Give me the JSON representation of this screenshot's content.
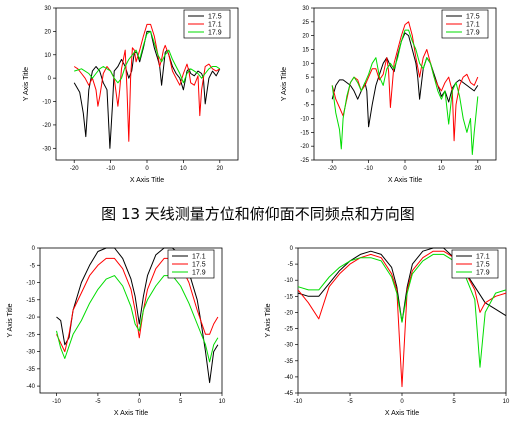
{
  "caption": "图 13 天线测量方位和俯仰面不同频点和方向图",
  "chart_data": [
    {
      "type": "line",
      "xlabel": "X Axis Title",
      "ylabel": "Y Axis Title",
      "xlim": [
        -25,
        25
      ],
      "ylim": [
        -35,
        30
      ],
      "xticks": [
        -20,
        -10,
        0,
        10,
        20
      ],
      "yticks": [
        -30,
        -20,
        -10,
        0,
        10,
        20,
        30
      ],
      "legend": "top-right",
      "series": [
        {
          "name": "17.5",
          "color": "#000000",
          "x": [
            -20,
            -18.5,
            -17.5,
            -16.8,
            -16,
            -15,
            -14,
            -13,
            -12,
            -11,
            -10.2,
            -9.5,
            -9,
            -8,
            -7,
            -6,
            -5,
            -4.2,
            -3.5,
            -2.8,
            -2,
            -1,
            0,
            1,
            2,
            3,
            3.5,
            4,
            5,
            5.5,
            6,
            7,
            8,
            9,
            10,
            11,
            11.5,
            12,
            13,
            14,
            15,
            15.5,
            16,
            17,
            18,
            19,
            20
          ],
          "y": [
            -2,
            -6,
            -15,
            -25,
            -5,
            3,
            5,
            3,
            -2,
            -5,
            -30,
            -12,
            3,
            5,
            8,
            5,
            0,
            3,
            11,
            11,
            7,
            13,
            20,
            20,
            13,
            8,
            5,
            -3,
            11,
            12,
            10,
            5,
            2,
            0,
            -5,
            3,
            4,
            2,
            1,
            3,
            2,
            0,
            -11,
            0,
            3,
            1,
            4
          ]
        },
        {
          "name": "17.1",
          "color": "#ff0000",
          "x": [
            -20,
            -19,
            -18,
            -17,
            -16,
            -15,
            -14,
            -13.5,
            -13,
            -12,
            -11,
            -10,
            -9,
            -8,
            -7.5,
            -7,
            -6,
            -5.5,
            -5,
            -4.5,
            -4,
            -3.5,
            -3,
            -2,
            -1,
            0,
            1,
            2,
            3,
            3.5,
            4,
            4.5,
            5,
            6,
            7,
            8,
            9,
            10,
            11,
            11.5,
            12,
            13,
            14,
            14.5,
            15,
            16,
            17,
            18,
            19,
            20
          ],
          "y": [
            5,
            4,
            2,
            0,
            -3,
            0,
            -5,
            -12,
            -8,
            2,
            5,
            3,
            0,
            -12,
            -5,
            4,
            12,
            -5,
            -27,
            0,
            13,
            12,
            7,
            12,
            18,
            23,
            23,
            18,
            10,
            5,
            8,
            12,
            14,
            10,
            3,
            0,
            -3,
            2,
            6,
            3,
            -2,
            -3,
            1,
            -16,
            -5,
            5,
            6,
            4,
            3,
            4
          ]
        },
        {
          "name": "17.9",
          "color": "#00dd00",
          "x": [
            -20,
            -18,
            -16,
            -15,
            -14,
            -13,
            -12,
            -11,
            -10,
            -9,
            -8,
            -7,
            -6,
            -5,
            -4,
            -3,
            -2,
            -1,
            0,
            1,
            2,
            3,
            4,
            5,
            6,
            7,
            8,
            9,
            10,
            11,
            12,
            13,
            14,
            15,
            16,
            17,
            18,
            19,
            20
          ],
          "y": [
            3,
            4,
            2,
            0,
            2,
            4,
            5,
            4,
            3,
            0,
            -2,
            0,
            5,
            8,
            10,
            12,
            8,
            14,
            19,
            20,
            15,
            10,
            7,
            10,
            12,
            8,
            5,
            2,
            -2,
            2,
            4,
            3,
            2,
            0,
            2,
            4,
            5,
            5,
            4
          ]
        }
      ]
    },
    {
      "type": "line",
      "xlabel": "X Axis Title",
      "ylabel": "Y Axis Title",
      "xlim": [
        -25,
        25
      ],
      "ylim": [
        -25,
        30
      ],
      "xticks": [
        -20,
        -10,
        0,
        10,
        20
      ],
      "yticks": [
        -25,
        -20,
        -15,
        -10,
        -5,
        0,
        5,
        10,
        15,
        20,
        25,
        30
      ],
      "legend": "top-right",
      "series": [
        {
          "name": "17.5",
          "color": "#000000",
          "x": [
            -20,
            -19,
            -18,
            -17,
            -16,
            -15,
            -14,
            -13,
            -12,
            -11,
            -10.5,
            -10,
            -9,
            -8,
            -7,
            -6,
            -5,
            -4,
            -3,
            -2,
            -1,
            0,
            1,
            2,
            3,
            3.5,
            4,
            5,
            6,
            7,
            8,
            9,
            10,
            11,
            12,
            13,
            14,
            15,
            16,
            17,
            18,
            19,
            20
          ],
          "y": [
            -3,
            2,
            4,
            4,
            3,
            2,
            0,
            -3,
            0,
            3,
            0,
            -13,
            -5,
            2,
            6,
            10,
            12,
            9,
            7,
            13,
            18,
            21,
            20,
            15,
            10,
            5,
            -3,
            8,
            12,
            10,
            6,
            2,
            -2,
            0,
            -4,
            1,
            3,
            4,
            3,
            2,
            1,
            0,
            2
          ]
        },
        {
          "name": "17.1",
          "color": "#ff0000",
          "x": [
            -20,
            -19,
            -18,
            -17,
            -16,
            -15,
            -14,
            -13,
            -12,
            -11,
            -10,
            -9,
            -8,
            -7,
            -6,
            -5,
            -4.5,
            -4,
            -3,
            -2,
            -1,
            0,
            1,
            2,
            3,
            4,
            5,
            6,
            7,
            8,
            9,
            10,
            11,
            12,
            13,
            13.5,
            14,
            15,
            16,
            17,
            18,
            19,
            20
          ],
          "y": [
            2,
            -3,
            -6,
            -9,
            -3,
            3,
            5,
            4,
            0,
            2,
            5,
            8,
            8,
            4,
            6,
            12,
            7,
            -6,
            10,
            15,
            20,
            24,
            25,
            20,
            12,
            5,
            12,
            15,
            10,
            5,
            2,
            0,
            3,
            5,
            0,
            -18,
            -5,
            2,
            5,
            6,
            3,
            2,
            5
          ]
        },
        {
          "name": "17.9",
          "color": "#00dd00",
          "x": [
            -20,
            -19,
            -18,
            -17.5,
            -17,
            -16,
            -15,
            -14,
            -13,
            -12,
            -11,
            -10,
            -9,
            -8,
            -7,
            -6,
            -5,
            -4,
            -3,
            -2,
            -1,
            0,
            1,
            2,
            3,
            4,
            5,
            6,
            7,
            8,
            9,
            10,
            11,
            12,
            13,
            14,
            15,
            16,
            17,
            18,
            18.5,
            19,
            20
          ],
          "y": [
            2,
            -8,
            -14,
            -21,
            -10,
            -2,
            3,
            5,
            3,
            0,
            3,
            6,
            10,
            12,
            5,
            2,
            8,
            10,
            8,
            12,
            18,
            22,
            22,
            18,
            15,
            10,
            8,
            12,
            10,
            5,
            0,
            -3,
            0,
            -12,
            0,
            3,
            -2,
            -10,
            -15,
            -10,
            -23,
            -15,
            -2
          ]
        }
      ]
    },
    {
      "type": "line",
      "xlabel": "X Axis Title",
      "ylabel": "Y Axis Title",
      "xlim": [
        -12,
        10
      ],
      "ylim": [
        -42,
        0
      ],
      "xticks": [
        -10,
        -5,
        0,
        5,
        10
      ],
      "yticks": [
        -40,
        -35,
        -30,
        -25,
        -20,
        -15,
        -10,
        -5,
        0
      ],
      "legend": "top-right",
      "series": [
        {
          "name": "17.1",
          "color": "#000000",
          "x": [
            -10,
            -9.5,
            -9,
            -8.5,
            -8,
            -7,
            -6,
            -5,
            -4,
            -3,
            -2,
            -1,
            -0.5,
            0,
            0.5,
            1,
            2,
            3,
            4,
            5,
            6,
            7,
            7.5,
            8,
            8.5,
            9,
            9.5
          ],
          "y": [
            -20,
            -21,
            -28,
            -26,
            -18,
            -10,
            -5,
            -1,
            0,
            0,
            -3,
            -9,
            -14,
            -22,
            -14,
            -8,
            -2,
            0,
            0,
            -2,
            -7,
            -15,
            -22,
            -30,
            -39,
            -30,
            -28
          ]
        },
        {
          "name": "17.5",
          "color": "#ff0000",
          "x": [
            -10,
            -9,
            -8.5,
            -8,
            -7,
            -6,
            -5,
            -4,
            -3,
            -2,
            -1,
            -0.5,
            0,
            0.5,
            1,
            2,
            3,
            4,
            5,
            6,
            7,
            8,
            8.5,
            9,
            9.5
          ],
          "y": [
            -25,
            -30,
            -25,
            -18,
            -13,
            -8,
            -5,
            -3,
            -3,
            -6,
            -12,
            -18,
            -26,
            -18,
            -12,
            -6,
            -3,
            -3,
            -5,
            -10,
            -18,
            -25,
            -25,
            -22,
            -20
          ]
        },
        {
          "name": "17.9",
          "color": "#00dd00",
          "x": [
            -10,
            -9.5,
            -9,
            -8,
            -7,
            -6,
            -5,
            -4,
            -3,
            -2,
            -1,
            -0.5,
            0,
            0.5,
            1,
            2,
            3,
            4,
            5,
            6,
            7,
            8,
            8.5,
            9,
            9.5
          ],
          "y": [
            -24,
            -29,
            -32,
            -25,
            -21,
            -16,
            -12,
            -9,
            -8,
            -11,
            -17,
            -22,
            -24,
            -18,
            -15,
            -11,
            -8,
            -8,
            -11,
            -16,
            -22,
            -28,
            -33,
            -28,
            -26
          ]
        }
      ]
    },
    {
      "type": "line",
      "xlabel": "X Axis Title",
      "ylabel": "Y Axis Title",
      "xlim": [
        -10,
        10
      ],
      "ylim": [
        -45,
        0
      ],
      "xticks": [
        -10,
        -5,
        0,
        5,
        10
      ],
      "yticks": [
        -45,
        -40,
        -35,
        -30,
        -25,
        -20,
        -15,
        -10,
        -5,
        0
      ],
      "legend": "top-right",
      "series": [
        {
          "name": "17.1",
          "color": "#000000",
          "x": [
            -10,
            -9,
            -8,
            -7,
            -6,
            -5,
            -4,
            -3,
            -2,
            -1,
            -0.5,
            0,
            0.5,
            1,
            2,
            3,
            4,
            5,
            6,
            7,
            8,
            9,
            10
          ],
          "y": [
            -14,
            -15,
            -15,
            -11,
            -7,
            -4,
            -2,
            -1,
            -2,
            -6,
            -12,
            -23,
            -12,
            -5,
            -1,
            0,
            0,
            -3,
            -7,
            -12,
            -17,
            -19,
            -21
          ]
        },
        {
          "name": "17.5",
          "color": "#ff0000",
          "x": [
            -10,
            -9,
            -8,
            -7,
            -6,
            -5,
            -4,
            -3,
            -2,
            -1,
            -0.5,
            0,
            0.5,
            1,
            2,
            3,
            4,
            5,
            6,
            7,
            7.5,
            8,
            9,
            10
          ],
          "y": [
            -13,
            -17,
            -22,
            -12,
            -8,
            -5,
            -3,
            -2,
            -3,
            -8,
            -13,
            -43,
            -13,
            -7,
            -3,
            -1,
            -1,
            -3,
            -7,
            -13,
            -20,
            -17,
            -15,
            -14
          ]
        },
        {
          "name": "17.9",
          "color": "#00dd00",
          "x": [
            -10,
            -9,
            -8,
            -7,
            -6,
            -5,
            -4,
            -3,
            -2,
            -1,
            -0.5,
            0,
            0.5,
            1,
            2,
            3,
            4,
            5,
            6,
            7,
            7.5,
            8,
            9,
            10
          ],
          "y": [
            -12,
            -13,
            -13,
            -9,
            -6,
            -4,
            -3,
            -3,
            -4,
            -9,
            -14,
            -23,
            -14,
            -8,
            -4,
            -2,
            -2,
            -4,
            -8,
            -16,
            -37,
            -20,
            -14,
            -13
          ]
        }
      ]
    }
  ]
}
